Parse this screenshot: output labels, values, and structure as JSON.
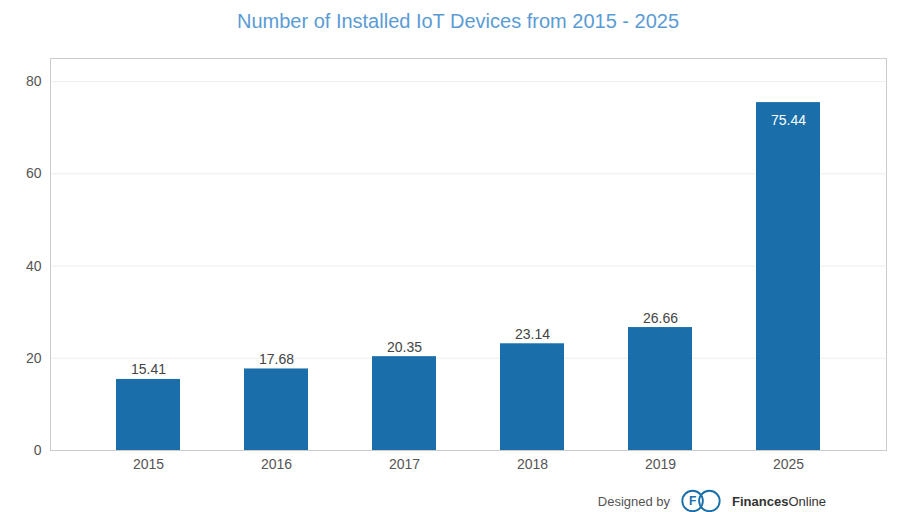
{
  "chart_data": {
    "type": "bar",
    "title": "Number of Installed IoT Devices from 2015 - 2025",
    "categories": [
      "2015",
      "2016",
      "2017",
      "2018",
      "2019",
      "2025"
    ],
    "values": [
      15.41,
      17.68,
      20.35,
      23.14,
      26.66,
      75.44
    ],
    "color": "#1a6faa",
    "ylim": [
      0,
      85
    ],
    "yticks": [
      0,
      20,
      40,
      60,
      80
    ],
    "grid": true,
    "data_labels": true,
    "annotations": [
      "Designed by",
      "F",
      "Finances",
      "Online"
    ]
  }
}
